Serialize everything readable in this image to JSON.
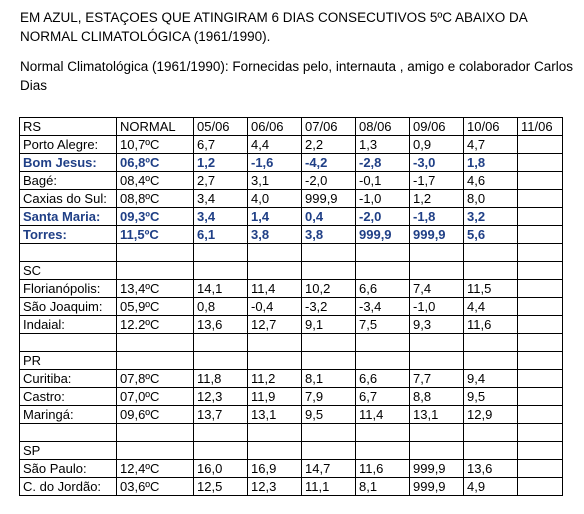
{
  "intro": {
    "line1": "EM AZUL, ESTAÇOES QUE ATINGIRAM 6 DIAS CONSECUTIVOS 5ºC ABAIXO DA NORMAL CLIMATOLÓGICA (1961/1990).",
    "line2": "Normal Climatológica (1961/1990):  Fornecidas pelo, internauta , amigo e colaborador Carlos Dias"
  },
  "table": {
    "header": [
      "RS",
      "NORMAL",
      "05/06",
      "06/06",
      "07/06",
      "08/06",
      "09/06",
      "10/06",
      "11/06"
    ],
    "rows": [
      {
        "type": "data",
        "highlight": false,
        "cells": [
          "Porto Alegre:",
          "10,7ºC",
          "6,7",
          "4,4",
          "2,2",
          "1,3",
          "0,9",
          "4,7",
          ""
        ]
      },
      {
        "type": "data",
        "highlight": true,
        "cells": [
          "Bom Jesus:",
          "06,8ºC",
          "1,2",
          "-1,6",
          "-4,2",
          "-2,8",
          "-3,0",
          "1,8",
          ""
        ]
      },
      {
        "type": "data",
        "highlight": false,
        "cells": [
          "Bagé:",
          "08,4ºC",
          "2,7",
          "3,1",
          "-2,0",
          "-0,1",
          "-1,7",
          "4,6",
          ""
        ]
      },
      {
        "type": "data",
        "highlight": false,
        "cells": [
          "Caxias do Sul:",
          "08,8ºC",
          "3,4",
          "4,0",
          "999,9",
          "-1,0",
          "1,2",
          "8,0",
          ""
        ]
      },
      {
        "type": "data",
        "highlight": true,
        "cells": [
          "Santa Maria:",
          "09,3ºC",
          "3,4",
          "1,4",
          "0,4",
          "-2,0",
          "-1,8",
          "3,2",
          ""
        ]
      },
      {
        "type": "data",
        "highlight": true,
        "cells": [
          "Torres:",
          "11,5ºC",
          "6,1",
          "3,8",
          "3,8",
          "999,9",
          "999,9",
          "5,6",
          ""
        ]
      },
      {
        "type": "blank"
      },
      {
        "type": "section",
        "label": "SC"
      },
      {
        "type": "data",
        "highlight": false,
        "cells": [
          "Florianópolis:",
          "13,4ºC",
          "14,1",
          "11,4",
          "10,2",
          "6,6",
          "7,4",
          "11,5",
          ""
        ]
      },
      {
        "type": "data",
        "highlight": false,
        "cells": [
          "São Joaquim:",
          "05,9ºC",
          "0,8",
          "-0,4",
          "-3,2",
          "-3,4",
          "-1,0",
          "4,4",
          ""
        ]
      },
      {
        "type": "data",
        "highlight": false,
        "cells": [
          "Indaial:",
          "12.2ºC",
          "13,6",
          "12,7",
          "9,1",
          "7,5",
          "9,3",
          "11,6",
          ""
        ]
      },
      {
        "type": "blank"
      },
      {
        "type": "section",
        "label": "PR"
      },
      {
        "type": "data",
        "highlight": false,
        "cells": [
          "Curitiba:",
          "07,8ºC",
          "11,8",
          "11,2",
          "8,1",
          "6,6",
          "7,7",
          "9,4",
          ""
        ]
      },
      {
        "type": "data",
        "highlight": false,
        "cells": [
          "Castro:",
          "07,0ºC",
          "12,3",
          "11,9",
          "7,9",
          "6,7",
          "8,8",
          "9,5",
          ""
        ]
      },
      {
        "type": "data",
        "highlight": false,
        "cells": [
          "Maringá:",
          "09,6ºC",
          "13,7",
          "13,1",
          "9,5",
          "11,4",
          "13,1",
          "12,9",
          ""
        ]
      },
      {
        "type": "blank"
      },
      {
        "type": "section",
        "label": "SP"
      },
      {
        "type": "data",
        "highlight": false,
        "cells": [
          "São Paulo:",
          "12,4ºC",
          "16,0",
          "16,9",
          "14,7",
          "11,6",
          "999,9",
          "13,6",
          ""
        ]
      },
      {
        "type": "data",
        "highlight": false,
        "cells": [
          "C. do Jordão:",
          "03,6ºC",
          "12,5",
          "12,3",
          "11,1",
          "8,1",
          "999,9",
          "4,9",
          ""
        ]
      }
    ]
  }
}
